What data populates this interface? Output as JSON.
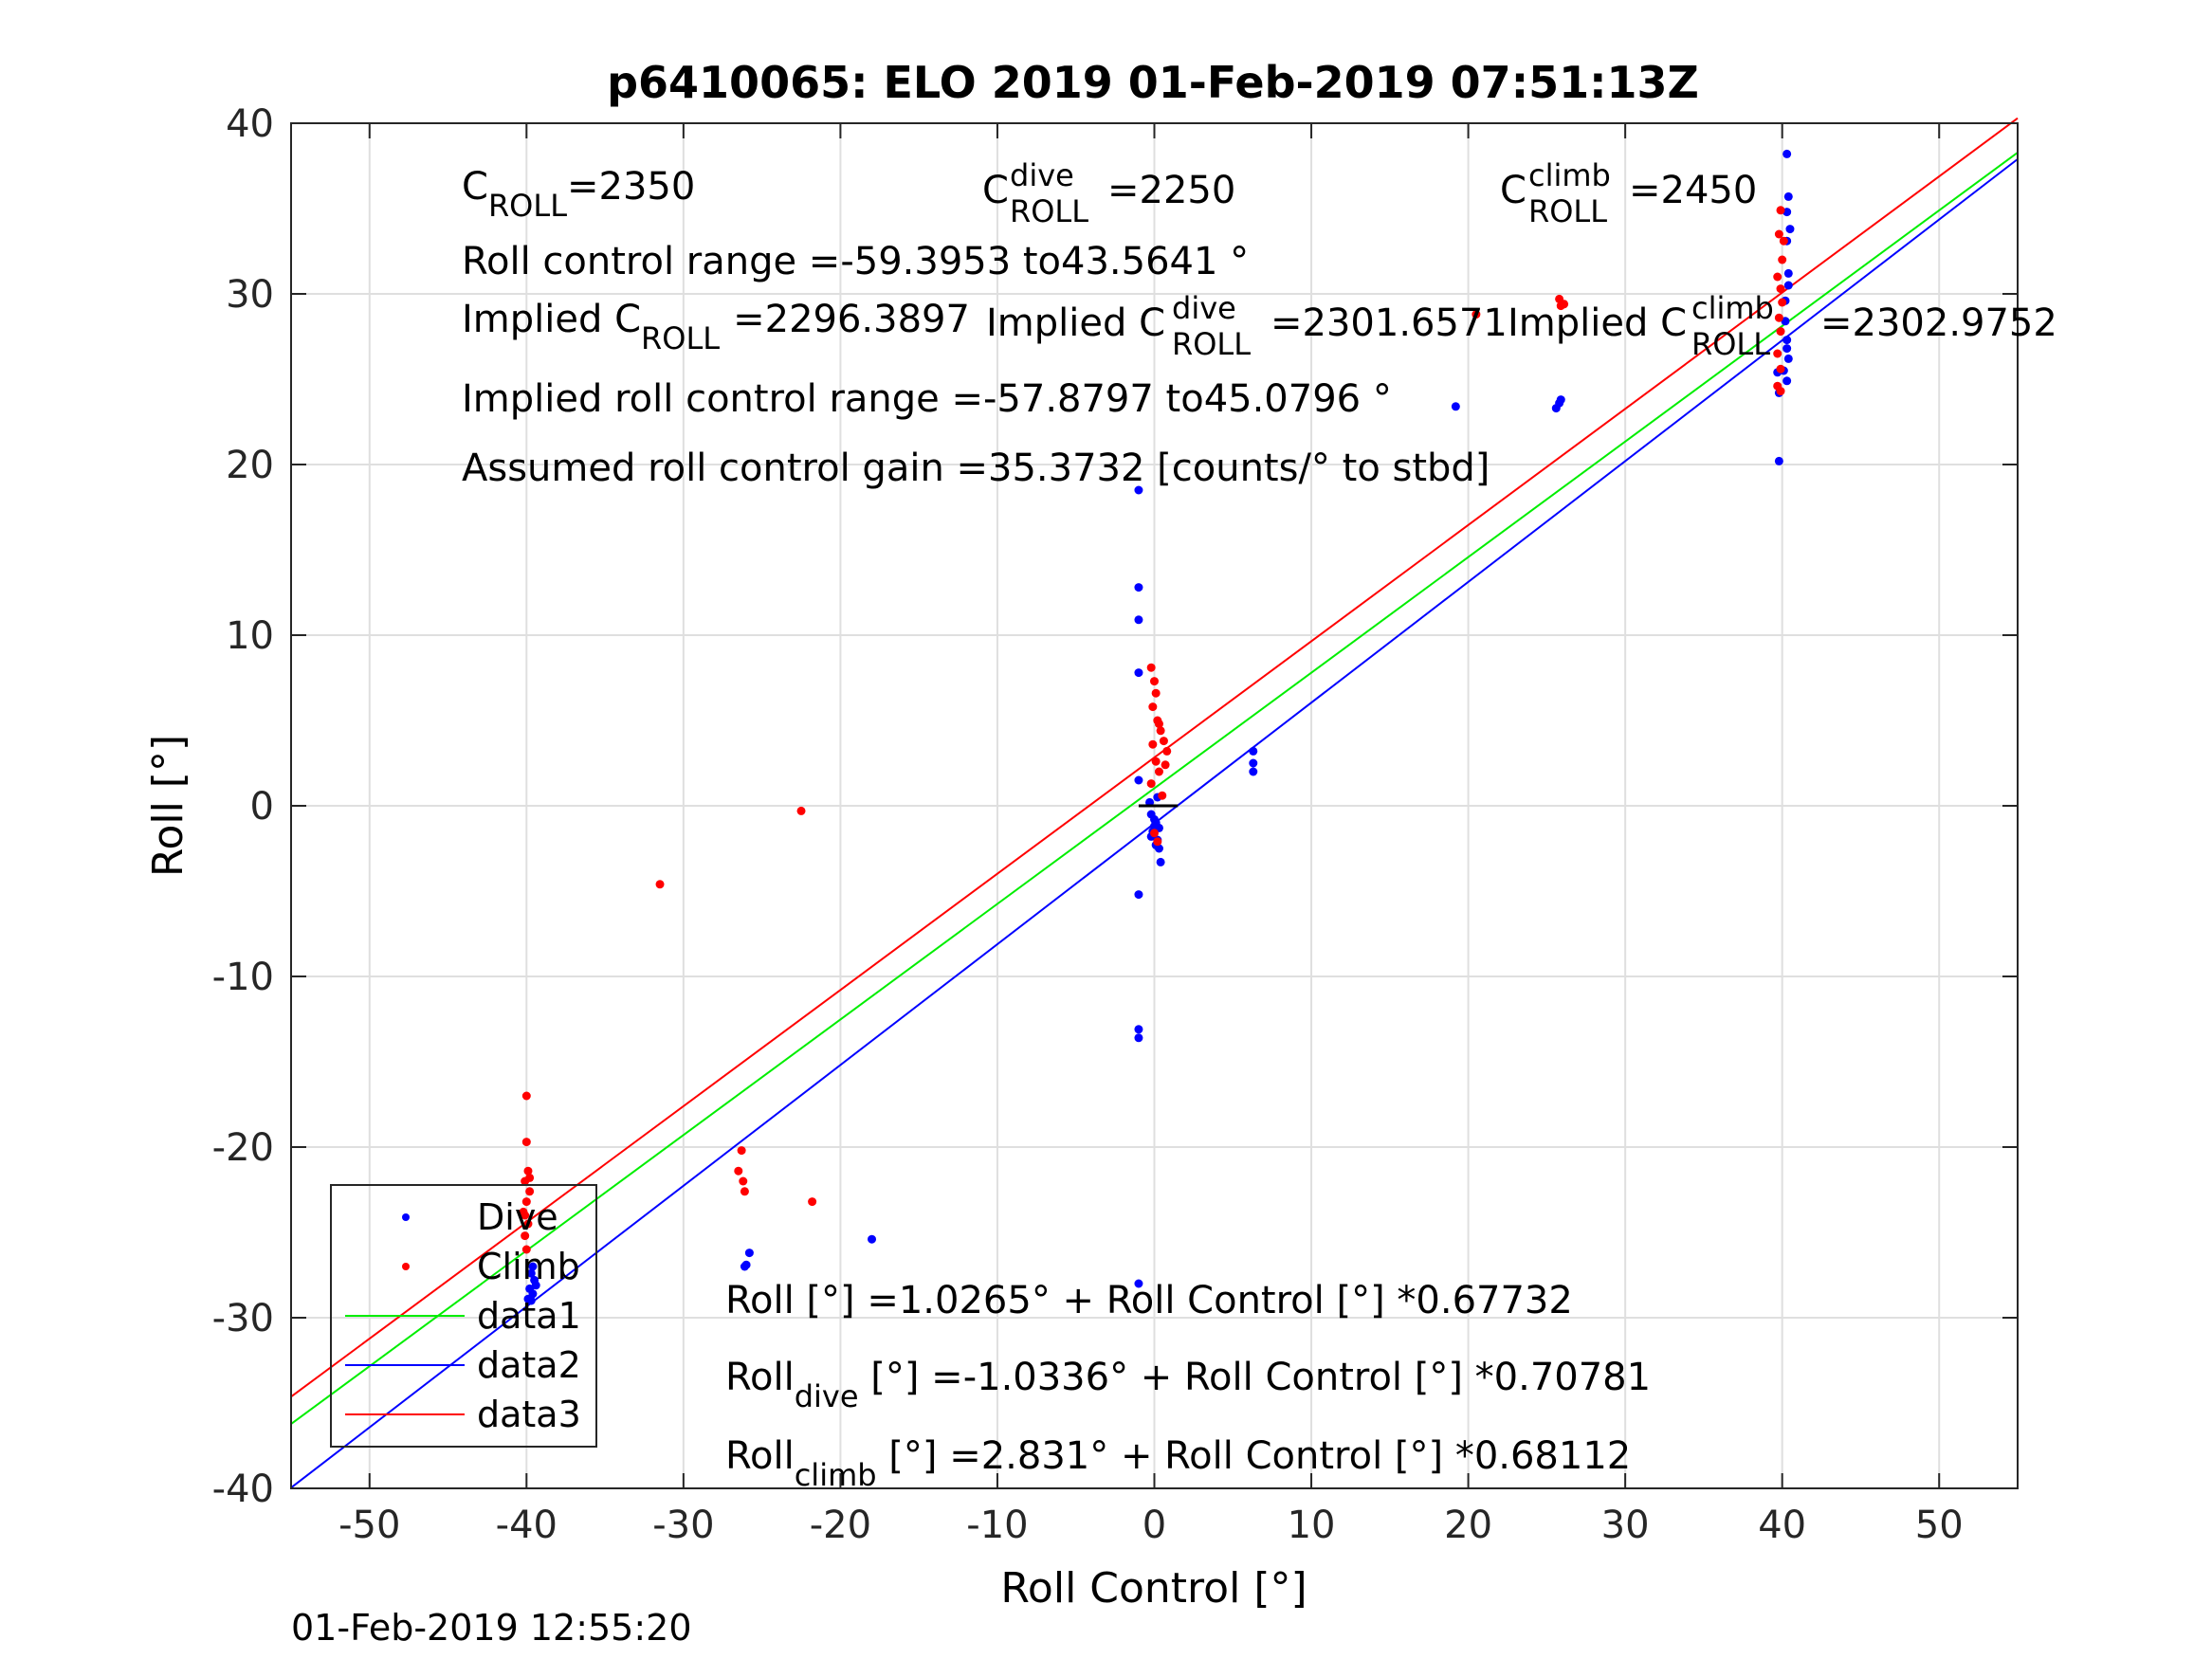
{
  "chart_data": {
    "type": "scatter",
    "title": "p6410065: ELO 2019 01-Feb-2019 07:51:13Z",
    "xlabel": "Roll Control [°]",
    "ylabel": "Roll [°]",
    "xlim": [
      -55,
      55
    ],
    "ylim": [
      -40,
      40
    ],
    "x_ticks": [
      "-50",
      "-40",
      "-30",
      "-20",
      "-10",
      "0",
      "10",
      "20",
      "30",
      "40",
      "50"
    ],
    "y_ticks": [
      "-40",
      "-30",
      "-20",
      "-10",
      "0",
      "10",
      "20",
      "30",
      "40"
    ],
    "grid": true,
    "legend_position": "bottom-left",
    "timestamp": "01-Feb-2019 12:55:20",
    "annotations": {
      "c_roll": {
        "base": "C",
        "sub": "ROLL",
        "value": "=2350"
      },
      "c_roll_dive": {
        "base": "C",
        "sup": "dive",
        "sub": "ROLL",
        "value": "=2250"
      },
      "c_roll_climb": {
        "base": "C",
        "sup": "climb",
        "sub": "ROLL",
        "value": "=2450"
      },
      "range_line": "Roll control range =-59.3953 to43.5641 °",
      "implied_c_roll": {
        "base": "Implied C",
        "sub": "ROLL",
        "value": "=2296.3897"
      },
      "implied_c_roll_dive": {
        "base": "Implied C",
        "sup": "dive",
        "sub": "ROLL",
        "value": "=2301.6571"
      },
      "implied_c_roll_climb": {
        "base": "Implied C",
        "sup": "climb",
        "sub": "ROLL",
        "value": "=2302.9752"
      },
      "implied_range_line": "Implied roll control range =-57.8797 to45.0796 °",
      "gain_line": "Assumed roll control gain =35.3732 [counts/° to stbd]",
      "fit_all": {
        "base": "Roll [°] =1.0265° + Roll Control [°] *0.67732"
      },
      "fit_dive": {
        "base": "Roll",
        "sub": "dive",
        "rest": " [°] =-1.0336° + Roll Control [°] *0.70781"
      },
      "fit_climb": {
        "base": "Roll",
        "sub": "climb",
        "rest": " [°] =2.831° + Roll Control [°] *0.68112"
      }
    },
    "colors": {
      "dive": "#0000ff",
      "climb": "#ff0000",
      "data1": "#00ee00",
      "data2": "#0000ff",
      "data3": "#ff0000"
    },
    "series": [
      {
        "name": "Dive",
        "kind": "points",
        "points": [
          [
            -39.7,
            -29.0
          ],
          [
            -39.6,
            -28.6
          ],
          [
            -39.8,
            -28.3
          ],
          [
            -39.5,
            -27.8
          ],
          [
            -39.7,
            -27.4
          ],
          [
            -39.9,
            -28.9
          ],
          [
            -39.4,
            -28.1
          ],
          [
            -39.6,
            -27.0
          ],
          [
            -26,
            -26.9
          ],
          [
            -25.8,
            -26.2
          ],
          [
            -26.1,
            -27
          ],
          [
            -18,
            -25.4
          ],
          [
            -1.0,
            18.5
          ],
          [
            -1.0,
            12.8
          ],
          [
            -1.0,
            10.9
          ],
          [
            -1.0,
            7.8
          ],
          [
            -1.0,
            1.5
          ],
          [
            -1.0,
            -5.2
          ],
          [
            -1.0,
            -13.1
          ],
          [
            -1.0,
            -13.6
          ],
          [
            -1.0,
            -28.0
          ],
          [
            -0.2,
            -0.5
          ],
          [
            0.1,
            -1.0
          ],
          [
            -0.1,
            -1.5
          ],
          [
            0.2,
            -2.0
          ],
          [
            0.0,
            -1.2
          ],
          [
            -0.3,
            0.2
          ],
          [
            0.3,
            -2.5
          ],
          [
            0.4,
            -3.3
          ],
          [
            0.0,
            -0.8
          ],
          [
            0.2,
            0.5
          ],
          [
            -0.2,
            -1.8
          ],
          [
            0.1,
            -2.3
          ],
          [
            0.3,
            -1.3
          ],
          [
            6.3,
            3.2
          ],
          [
            6.3,
            2.5
          ],
          [
            6.3,
            2.0
          ],
          [
            19.2,
            23.4
          ],
          [
            25.6,
            23.3
          ],
          [
            25.8,
            23.6
          ],
          [
            25.9,
            23.8
          ],
          [
            40.3,
            38.2
          ],
          [
            40.4,
            35.7
          ],
          [
            40.3,
            34.8
          ],
          [
            40.5,
            33.8
          ],
          [
            40.3,
            33.1
          ],
          [
            40.4,
            31.2
          ],
          [
            40.2,
            29.6
          ],
          [
            40.3,
            27.3
          ],
          [
            40.4,
            26.2
          ],
          [
            40.1,
            25.5
          ],
          [
            40.3,
            24.9
          ],
          [
            39.8,
            24.2
          ],
          [
            39.7,
            25.4
          ],
          [
            39.8,
            20.2
          ],
          [
            40.2,
            28.4
          ],
          [
            40.4,
            30.5
          ],
          [
            40.3,
            26.8
          ]
        ]
      },
      {
        "name": "Climb",
        "kind": "points",
        "points": [
          [
            -40.0,
            -17.0
          ],
          [
            -40.0,
            -19.7
          ],
          [
            -39.9,
            -21.4
          ],
          [
            -40.1,
            -22.0
          ],
          [
            -39.8,
            -22.6
          ],
          [
            -40.0,
            -23.2
          ],
          [
            -40.2,
            -23.8
          ],
          [
            -39.9,
            -24.5
          ],
          [
            -40.1,
            -25.2
          ],
          [
            -40.0,
            -26.0
          ],
          [
            -39.8,
            -21.8
          ],
          [
            -40.1,
            -24.0
          ],
          [
            -31.5,
            -4.6
          ],
          [
            -22.5,
            -0.3
          ],
          [
            -26.3,
            -20.2
          ],
          [
            -26.5,
            -21.4
          ],
          [
            -26.2,
            -22.0
          ],
          [
            -26.1,
            -22.6
          ],
          [
            -21.8,
            -23.2
          ],
          [
            -0.2,
            8.1
          ],
          [
            0.0,
            7.3
          ],
          [
            0.1,
            6.6
          ],
          [
            -0.1,
            5.8
          ],
          [
            0.2,
            5.0
          ],
          [
            0.4,
            4.4
          ],
          [
            0.6,
            3.8
          ],
          [
            0.8,
            3.2
          ],
          [
            0.1,
            2.6
          ],
          [
            0.3,
            2.0
          ],
          [
            -0.2,
            1.3
          ],
          [
            0.5,
            0.6
          ],
          [
            0.0,
            -1.6
          ],
          [
            0.2,
            -2.1
          ],
          [
            0.7,
            2.4
          ],
          [
            -0.1,
            3.6
          ],
          [
            0.3,
            4.8
          ],
          [
            20.5,
            28.8
          ],
          [
            25.8,
            29.7
          ],
          [
            25.9,
            29.3
          ],
          [
            26.1,
            29.4
          ],
          [
            39.9,
            34.9
          ],
          [
            39.8,
            33.5
          ],
          [
            40.0,
            32.0
          ],
          [
            39.7,
            31.0
          ],
          [
            39.9,
            30.3
          ],
          [
            40.0,
            29.5
          ],
          [
            39.8,
            28.6
          ],
          [
            39.9,
            27.8
          ],
          [
            39.7,
            26.5
          ],
          [
            39.9,
            25.6
          ],
          [
            39.7,
            24.6
          ],
          [
            39.9,
            24.3
          ],
          [
            40.1,
            33.1
          ]
        ]
      },
      {
        "name": "data1",
        "kind": "line",
        "x": [
          -55,
          55
        ],
        "y": [
          -36.228,
          38.28
        ]
      },
      {
        "name": "data2",
        "kind": "line",
        "x": [
          -55,
          55
        ],
        "y": [
          -39.963,
          37.896
        ]
      },
      {
        "name": "data3",
        "kind": "line",
        "x": [
          -55,
          55
        ],
        "y": [
          -34.631,
          40.293
        ]
      }
    ],
    "center_marker": {
      "x": [
        -1,
        1.5
      ],
      "y": [
        0,
        0
      ]
    }
  }
}
